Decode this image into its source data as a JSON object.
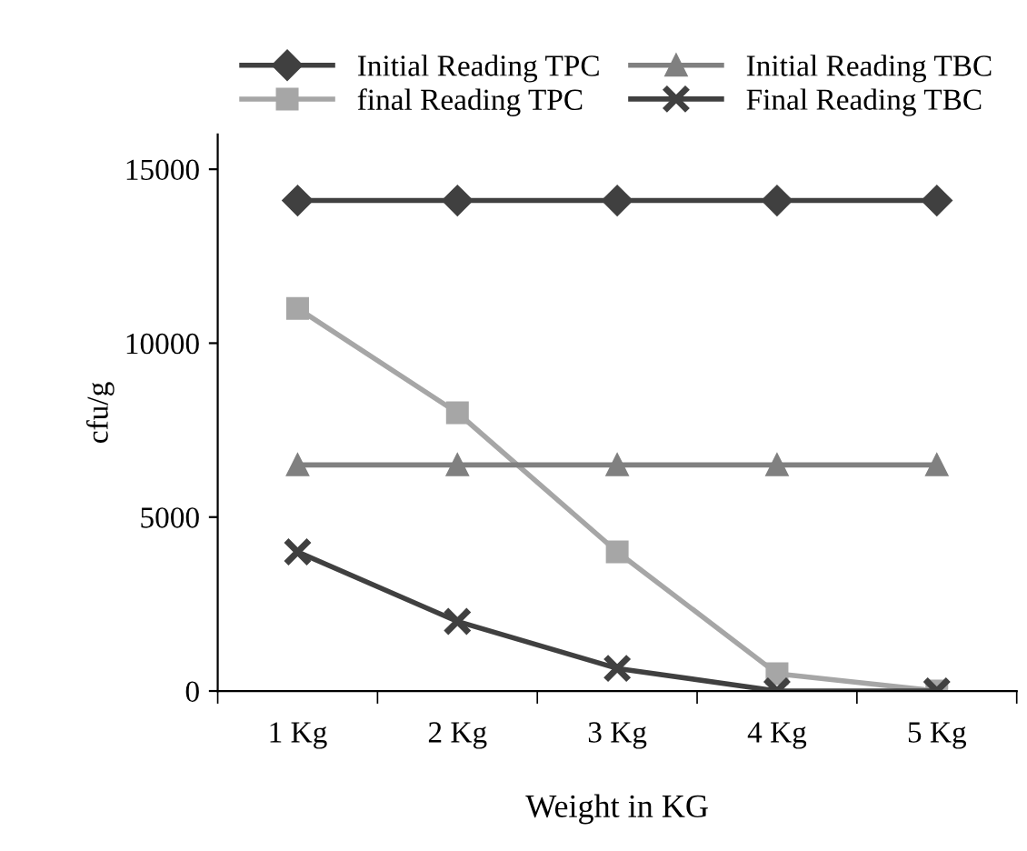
{
  "chart_data": {
    "type": "line",
    "xlabel": "Weight in KG",
    "ylabel": "cfu/g",
    "categories": [
      "1 Kg",
      "2 Kg",
      "3 Kg",
      "4 Kg",
      "5 Kg"
    ],
    "series": [
      {
        "name": "Initial Reading TPC",
        "color": "#404040",
        "marker": "diamond",
        "values": [
          14100,
          14100,
          14100,
          14100,
          14100
        ]
      },
      {
        "name": "final Reading TPC",
        "color": "#a6a6a6",
        "marker": "square",
        "values": [
          11000,
          8000,
          4000,
          500,
          0
        ]
      },
      {
        "name": "Initial Reading TBC",
        "color": "#808080",
        "marker": "triangle",
        "values": [
          6500,
          6500,
          6500,
          6500,
          6500
        ]
      },
      {
        "name": "Final Reading TBC",
        "color": "#404040",
        "marker": "cross",
        "values": [
          4000,
          2000,
          650,
          0,
          0
        ]
      }
    ],
    "ylim": [
      0,
      16000
    ],
    "yticks": [
      0,
      5000,
      10000,
      15000
    ],
    "grid": false,
    "legend": "top",
    "line_style": "solid"
  }
}
